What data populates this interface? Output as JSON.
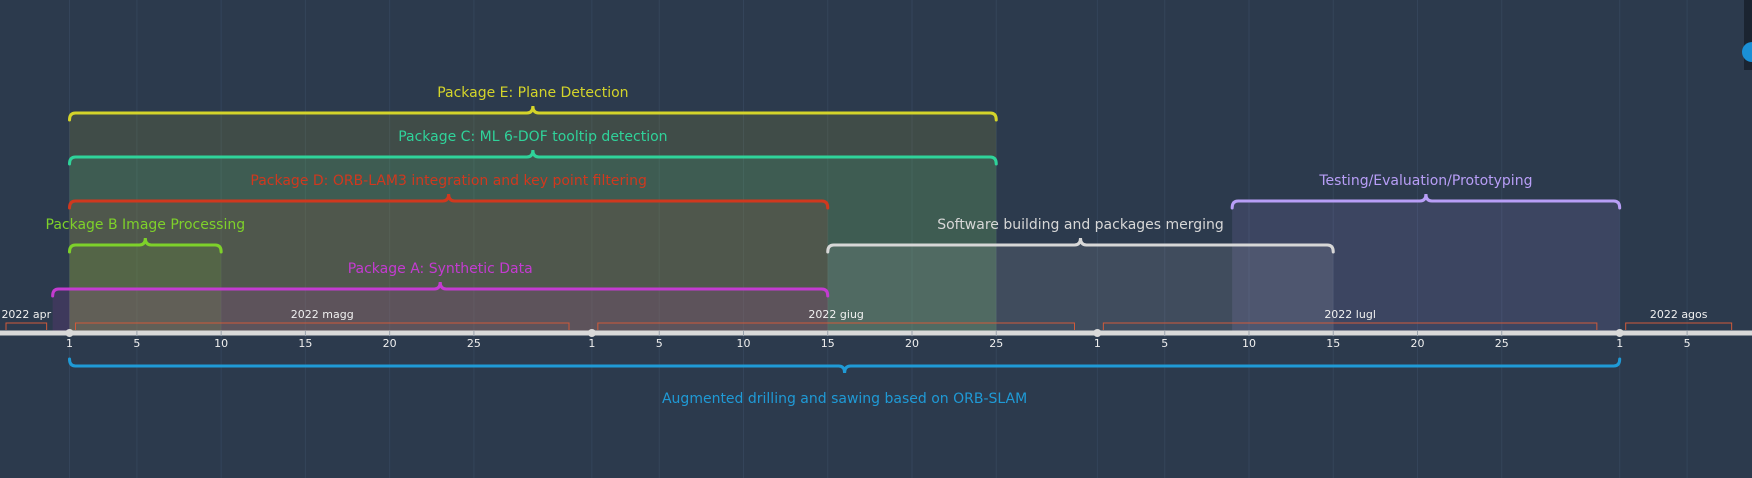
{
  "timeline": {
    "title": "Augmented drilling and sawing based on ORB-SLAM",
    "colors": {
      "background": "#2c3a4d",
      "axis": "#d9d9d9",
      "month_bracket": "#d05a3a",
      "project": "#1f9ad6",
      "today_marker": "#e0405a"
    },
    "months": [
      {
        "label": "2022 apr",
        "start": "2022-03-28",
        "end": "2022-04-30"
      },
      {
        "label": "2022 magg",
        "start": "2022-05-01",
        "end": "2022-05-31"
      },
      {
        "label": "2022 giug",
        "start": "2022-06-01",
        "end": "2022-06-30"
      },
      {
        "label": "2022 lugl",
        "start": "2022-07-01",
        "end": "2022-07-31"
      },
      {
        "label": "2022 agos",
        "start": "2022-08-01",
        "end": "2022-08-08"
      }
    ],
    "ticks": [
      {
        "label": "1",
        "date": "2022-05-01"
      },
      {
        "label": "5",
        "date": "2022-05-05"
      },
      {
        "label": "10",
        "date": "2022-05-10"
      },
      {
        "label": "15",
        "date": "2022-05-15"
      },
      {
        "label": "20",
        "date": "2022-05-20"
      },
      {
        "label": "25",
        "date": "2022-05-25"
      },
      {
        "label": "1",
        "date": "2022-06-01"
      },
      {
        "label": "5",
        "date": "2022-06-05"
      },
      {
        "label": "10",
        "date": "2022-06-10"
      },
      {
        "label": "15",
        "date": "2022-06-15"
      },
      {
        "label": "20",
        "date": "2022-06-20"
      },
      {
        "label": "25",
        "date": "2022-06-25"
      },
      {
        "label": "1",
        "date": "2022-07-01"
      },
      {
        "label": "5",
        "date": "2022-07-05"
      },
      {
        "label": "10",
        "date": "2022-07-10"
      },
      {
        "label": "15",
        "date": "2022-07-15"
      },
      {
        "label": "20",
        "date": "2022-07-20"
      },
      {
        "label": "25",
        "date": "2022-07-25"
      },
      {
        "label": "1",
        "date": "2022-08-01"
      },
      {
        "label": "5",
        "date": "2022-08-05"
      }
    ],
    "today": "2022-04-26",
    "tasks": [
      {
        "name": "Package E: Plane Detection",
        "start": "2022-05-01",
        "end": "2022-06-25",
        "color": "#d4d42a"
      },
      {
        "name": "Package C: ML 6-DOF tooltip detection",
        "start": "2022-05-01",
        "end": "2022-06-25",
        "color": "#2fd39a"
      },
      {
        "name": "Package D: ORB-LAM3 integration and key point filtering",
        "start": "2022-05-01",
        "end": "2022-06-15",
        "color": "#d0381e"
      },
      {
        "name": "Testing/Evaluation/Prototyping",
        "start": "2022-07-09",
        "end": "2022-08-01",
        "color": "#b89ef7"
      },
      {
        "name": "Package B Image Processing",
        "start": "2022-05-01",
        "end": "2022-05-10",
        "color": "#7ed12a"
      },
      {
        "name": "Software building and packages merging",
        "start": "2022-06-15",
        "end": "2022-07-15",
        "color": "#d7d7d7"
      },
      {
        "name": "Package A: Synthetic Data",
        "start": "2022-04-30",
        "end": "2022-06-15",
        "color": "#c43bd1"
      }
    ]
  }
}
